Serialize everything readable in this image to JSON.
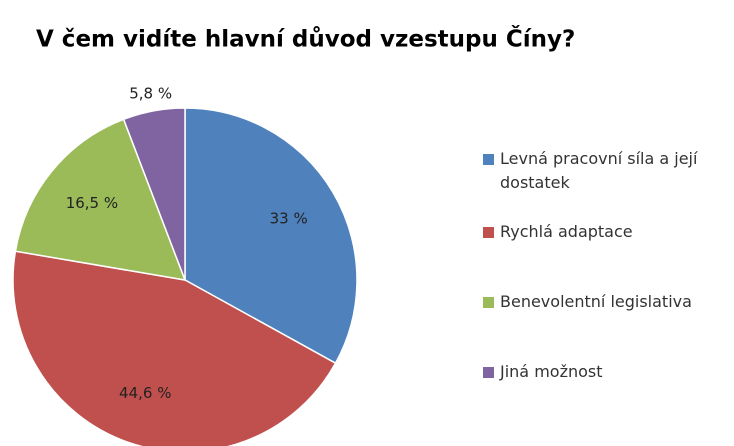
{
  "chart_data": {
    "type": "pie",
    "title": "V čem vidíte hlavní důvod vzestupu Číny?",
    "categories": [
      "Levná pracovní síla a její dostatek",
      "Rychlá adaptace",
      "Benevolentní legislativa",
      "Jiná možnost"
    ],
    "values": [
      33,
      44.6,
      16.5,
      5.8
    ],
    "value_labels": [
      "33 %",
      "44,6 %",
      "16,5 %",
      "5,8 %"
    ],
    "colors": [
      "#4f81bd",
      "#c0504d",
      "#9bbb59",
      "#8064a2"
    ],
    "legend": "right"
  }
}
